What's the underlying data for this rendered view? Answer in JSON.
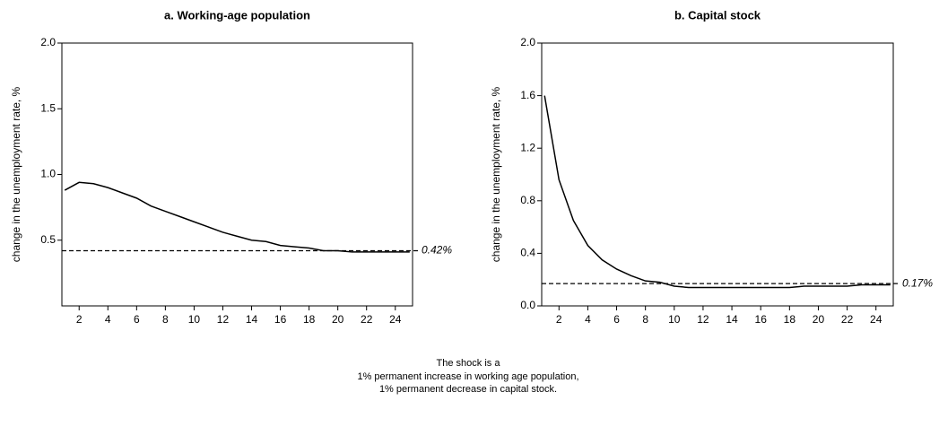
{
  "chart_data": [
    {
      "type": "line",
      "title": "a. Working-age population",
      "y_label": "change in the unemployment rate, %",
      "x": [
        1,
        2,
        3,
        4,
        5,
        6,
        7,
        8,
        9,
        10,
        11,
        12,
        13,
        14,
        15,
        16,
        17,
        18,
        19,
        20,
        21,
        22,
        23,
        24,
        25
      ],
      "values": [
        0.88,
        0.94,
        0.93,
        0.9,
        0.86,
        0.82,
        0.76,
        0.72,
        0.68,
        0.64,
        0.6,
        0.56,
        0.53,
        0.5,
        0.49,
        0.46,
        0.45,
        0.44,
        0.42,
        0.42,
        0.41,
        0.41,
        0.41,
        0.41,
        0.41
      ],
      "color": "#000000",
      "xlim": [
        0.8,
        25.2
      ],
      "xticks": [
        2,
        4,
        6,
        8,
        10,
        12,
        14,
        16,
        18,
        20,
        22,
        24
      ],
      "ylim": [
        0,
        2.0
      ],
      "yticks": [
        0.5,
        {
          "value": 1.0,
          "label": "1.0"
        },
        1.5,
        {
          "value": 2.0,
          "label": "2.0"
        }
      ],
      "reference": {
        "value": 0.42,
        "label": "0.42%"
      }
    },
    {
      "type": "line",
      "title": "b. Capital stock",
      "y_label": "change in the unemployment rate, %",
      "x": [
        1,
        2,
        3,
        4,
        5,
        6,
        7,
        8,
        9,
        10,
        11,
        12,
        13,
        14,
        15,
        16,
        17,
        18,
        19,
        20,
        21,
        22,
        23,
        24,
        25
      ],
      "values": [
        1.6,
        0.96,
        0.65,
        0.46,
        0.35,
        0.28,
        0.23,
        0.19,
        0.18,
        0.15,
        0.14,
        0.14,
        0.14,
        0.14,
        0.14,
        0.14,
        0.14,
        0.14,
        0.15,
        0.15,
        0.15,
        0.15,
        0.16,
        0.16,
        0.16
      ],
      "color": "#000000",
      "xlim": [
        0.8,
        25.2
      ],
      "xticks": [
        2,
        4,
        6,
        8,
        10,
        12,
        14,
        16,
        18,
        20,
        22,
        24
      ],
      "ylim": [
        0,
        2.0
      ],
      "yticks": [
        {
          "value": 0.0,
          "label": "0.0"
        },
        0.4,
        0.8,
        1.2,
        1.6,
        {
          "value": 2.0,
          "label": "2.0"
        }
      ],
      "reference": {
        "value": 0.17,
        "label": "0.17%"
      }
    }
  ],
  "notes": [
    "The shock is a",
    "1% permanent increase in working age population,",
    "1% permanent decrease in capital stock."
  ]
}
